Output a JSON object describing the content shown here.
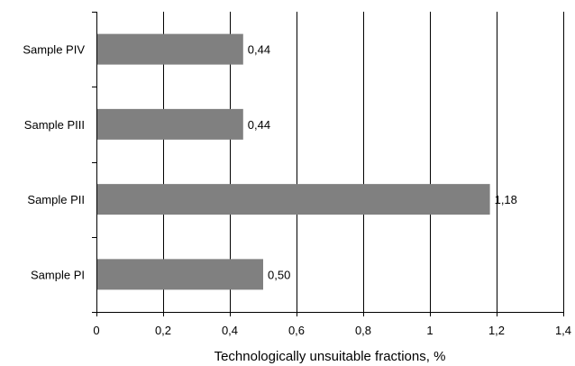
{
  "chart_data": {
    "type": "bar",
    "orientation": "horizontal",
    "title": "",
    "xlabel": "Technologically unsuitable fractions, %",
    "ylabel": "",
    "categories": [
      "Sample PIV",
      "Sample PIII",
      "Sample PII",
      "Sample PI"
    ],
    "values": [
      0.44,
      0.44,
      1.18,
      0.5
    ],
    "value_labels": [
      "0,44",
      "0,44",
      "1,18",
      "0,50"
    ],
    "xlim": [
      0,
      1.4
    ],
    "x_ticks": [
      0,
      0.2,
      0.4,
      0.6,
      0.8,
      1.0,
      1.2,
      1.4
    ],
    "x_tick_labels": [
      "0",
      "0,2",
      "0,4",
      "0,6",
      "0,8",
      "1",
      "1,2",
      "1,4"
    ],
    "grid": "vertical",
    "legend": "none",
    "bar_color": "#808080",
    "grid_color": "#000000"
  }
}
